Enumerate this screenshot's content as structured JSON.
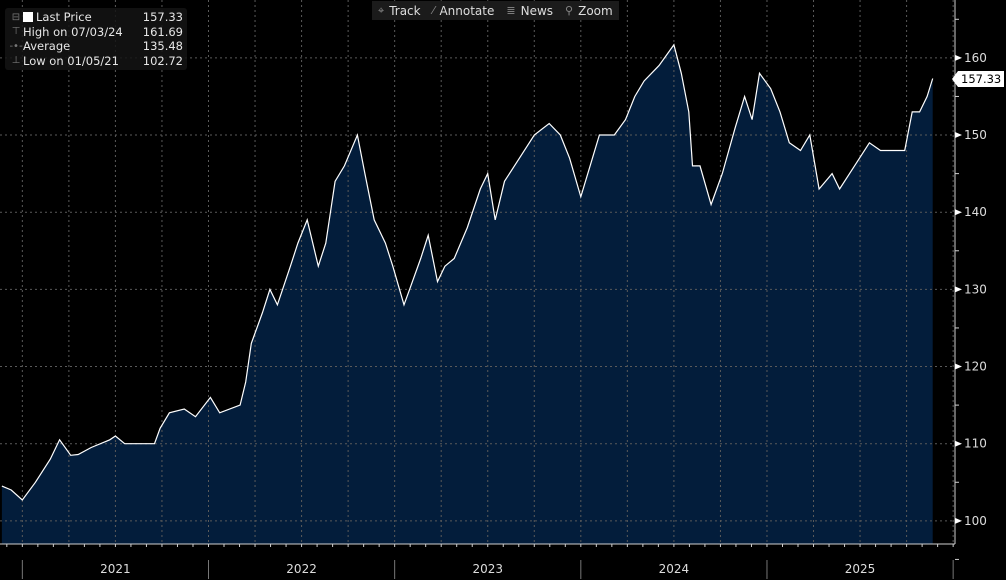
{
  "toolbar": {
    "items": [
      {
        "icon": "crosshair-icon",
        "glyph": "⌖",
        "label": "Track"
      },
      {
        "icon": "annotate-icon",
        "glyph": "⁄",
        "label": "Annotate"
      },
      {
        "icon": "news-icon",
        "glyph": "≣",
        "label": "News"
      },
      {
        "icon": "zoom-icon",
        "glyph": "⚲",
        "label": "Zoom"
      }
    ]
  },
  "legend": {
    "last": {
      "label": "Last Price",
      "value": "157.33"
    },
    "high": {
      "label": "High on 07/03/24",
      "value": "161.69"
    },
    "average": {
      "label": "Average",
      "value": "135.48"
    },
    "low": {
      "label": "Low on 01/05/21",
      "value": "102.72"
    }
  },
  "last_price_label": "157.33",
  "colors": {
    "fill": "#031d3b",
    "line": "#ffffff",
    "grid": "#5a5a5a",
    "axis": "#cfcfcf"
  },
  "chart_data": {
    "type": "area",
    "title": "",
    "xlabel": "",
    "ylabel": "",
    "xlim": [
      2020.88,
      2026.01
    ],
    "ylim": [
      97,
      167.5
    ],
    "y_ticks": [
      100,
      110,
      120,
      130,
      140,
      150,
      160
    ],
    "x_ticks": [
      "2021",
      "2022",
      "2023",
      "2024",
      "2025"
    ],
    "grid": true,
    "legend_position": "top-left",
    "series": [
      {
        "name": "Last Price",
        "x": [
          2020.89,
          2020.94,
          2021.0,
          2021.07,
          2021.15,
          2021.2,
          2021.26,
          2021.3,
          2021.37,
          2021.47,
          2021.5,
          2021.55,
          2021.63,
          2021.71,
          2021.74,
          2021.79,
          2021.87,
          2021.93,
          2022.01,
          2022.06,
          2022.17,
          2022.2,
          2022.23,
          2022.29,
          2022.33,
          2022.37,
          2022.44,
          2022.48,
          2022.53,
          2022.59,
          2022.63,
          2022.68,
          2022.73,
          2022.8,
          2022.84,
          2022.89,
          2022.95,
          2022.99,
          2023.05,
          2023.08,
          2023.14,
          2023.18,
          2023.23,
          2023.27,
          2023.32,
          2023.39,
          2023.46,
          2023.5,
          2023.54,
          2023.59,
          2023.67,
          2023.75,
          2023.83,
          2023.89,
          2023.94,
          2024.0,
          2024.05,
          2024.1,
          2024.18,
          2024.24,
          2024.29,
          2024.34,
          2024.42,
          2024.5,
          2024.54,
          2024.58,
          2024.6,
          2024.64,
          2024.7,
          2024.76,
          2024.83,
          2024.88,
          2024.92,
          2024.96,
          2025.02,
          2025.07,
          2025.12,
          2025.18,
          2025.23,
          2025.28,
          2025.35,
          2025.39,
          2025.47,
          2025.55,
          2025.61,
          2025.69,
          2025.74,
          2025.78,
          2025.82,
          2025.86,
          2025.89
        ],
        "y": [
          104.5,
          104.0,
          102.7,
          105.0,
          108.0,
          110.5,
          108.5,
          108.6,
          109.5,
          110.5,
          111.0,
          110.0,
          110.0,
          110.0,
          112.0,
          114.0,
          114.5,
          113.5,
          116.0,
          114.0,
          115.0,
          118.0,
          123.0,
          127.0,
          130.0,
          128.0,
          133.0,
          136.0,
          139.0,
          133.0,
          136.0,
          144.0,
          146.0,
          150.0,
          145.0,
          139.0,
          136.0,
          133.0,
          128.0,
          130.0,
          134.0,
          137.0,
          131.0,
          133.0,
          134.0,
          138.0,
          143.0,
          145.0,
          139.0,
          144.0,
          147.0,
          150.0,
          151.5,
          150.0,
          147.0,
          142.0,
          146.0,
          150.0,
          150.0,
          152.0,
          155.0,
          157.0,
          159.0,
          161.69,
          158.0,
          153.0,
          146.0,
          146.0,
          141.0,
          145.0,
          151.0,
          155.0,
          152.0,
          158.0,
          156.0,
          153.0,
          149.0,
          148.0,
          150.0,
          143.0,
          145.0,
          143.0,
          146.0,
          149.0,
          148.0,
          148.0,
          148.0,
          153.0,
          153.0,
          155.0,
          157.33
        ]
      }
    ]
  }
}
